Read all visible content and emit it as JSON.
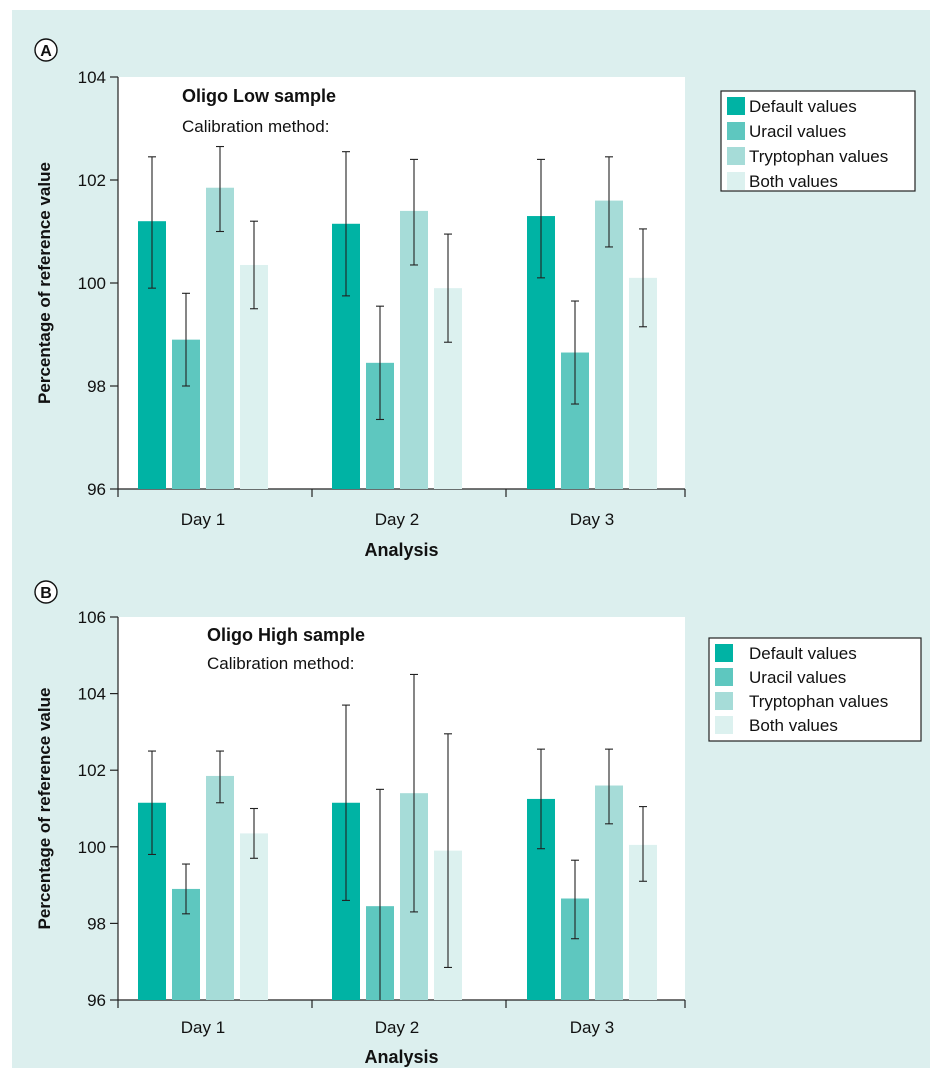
{
  "chart_data": [
    {
      "type": "bar",
      "panel_label": "A",
      "title": "Oligo Low sample",
      "subtitle": "Calibration method:",
      "xlabel": "Analysis",
      "ylabel": "Percentage of reference value",
      "categories": [
        "Day 1",
        "Day 2",
        "Day 3"
      ],
      "ylim": [
        96,
        104
      ],
      "yticks": [
        96,
        98,
        100,
        102,
        104
      ],
      "legend_position": "right",
      "series": [
        {
          "name": "Default values",
          "color": "#00b3a4",
          "values": [
            101.2,
            101.15,
            101.3
          ],
          "error_low": [
            99.9,
            99.75,
            100.1
          ],
          "error_high": [
            102.45,
            102.55,
            102.4
          ]
        },
        {
          "name": "Uracil values",
          "color": "#5ec7bf",
          "values": [
            98.9,
            98.45,
            98.65
          ],
          "error_low": [
            98.0,
            97.35,
            97.65
          ],
          "error_high": [
            99.8,
            99.55,
            99.65
          ]
        },
        {
          "name": "Tryptophan values",
          "color": "#a6dcd8",
          "values": [
            101.85,
            101.4,
            101.6
          ],
          "error_low": [
            101.0,
            100.35,
            100.7
          ],
          "error_high": [
            102.65,
            102.4,
            102.45
          ]
        },
        {
          "name": "Both values",
          "color": "#dcf1ef",
          "values": [
            100.35,
            99.9,
            100.1
          ],
          "error_low": [
            99.5,
            98.85,
            99.15
          ],
          "error_high": [
            101.2,
            100.95,
            101.05
          ]
        }
      ]
    },
    {
      "type": "bar",
      "panel_label": "B",
      "title": "Oligo High sample",
      "subtitle": "Calibration method:",
      "xlabel": "Analysis",
      "ylabel": "Percentage of reference value",
      "categories": [
        "Day 1",
        "Day 2",
        "Day 3"
      ],
      "ylim": [
        96,
        106
      ],
      "yticks": [
        96,
        98,
        100,
        102,
        104,
        106
      ],
      "legend_position": "right",
      "series": [
        {
          "name": "Default values",
          "color": "#00b3a4",
          "values": [
            101.15,
            101.15,
            101.25
          ],
          "error_low": [
            99.8,
            98.6,
            99.95
          ],
          "error_high": [
            102.5,
            103.7,
            102.55
          ]
        },
        {
          "name": "Uracil values",
          "color": "#5ec7bf",
          "values": [
            98.9,
            98.45,
            98.65
          ],
          "error_low": [
            98.25,
            95.4,
            97.6
          ],
          "error_high": [
            99.55,
            101.5,
            99.65
          ]
        },
        {
          "name": "Tryptophan values",
          "color": "#a6dcd8",
          "values": [
            101.85,
            101.4,
            101.6
          ],
          "error_low": [
            101.15,
            98.3,
            100.6
          ],
          "error_high": [
            102.5,
            104.5,
            102.55
          ]
        },
        {
          "name": "Both values",
          "color": "#dcf1ef",
          "values": [
            100.35,
            99.9,
            100.05
          ],
          "error_low": [
            99.7,
            96.85,
            99.1
          ],
          "error_high": [
            101.0,
            102.95,
            101.05
          ]
        }
      ]
    }
  ]
}
